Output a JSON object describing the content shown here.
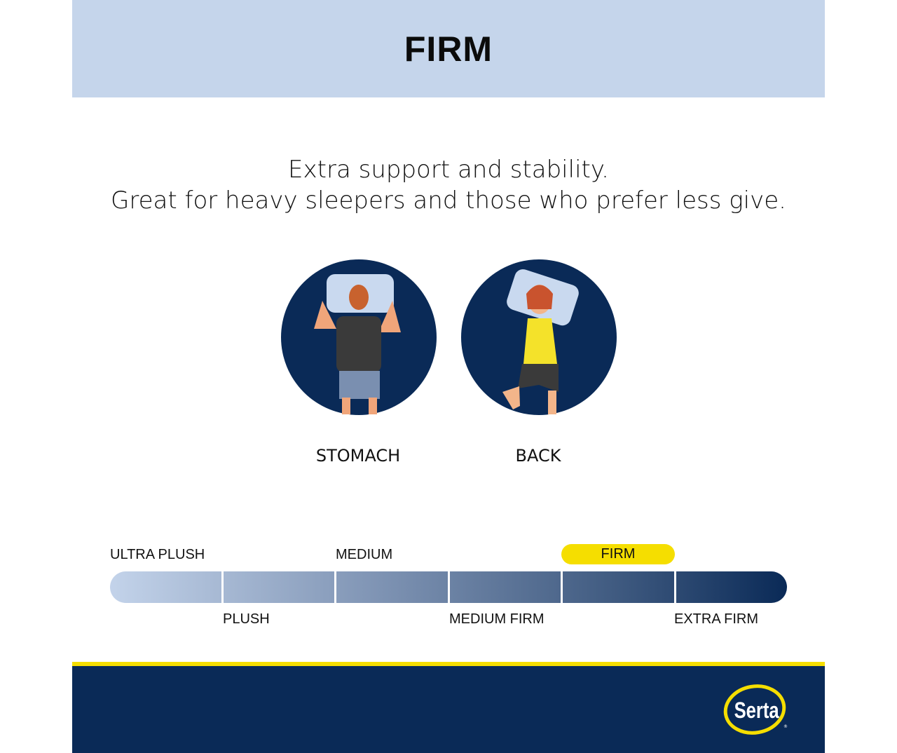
{
  "header": {
    "title": "FIRM"
  },
  "tagline": {
    "line1": "Extra support and stability.",
    "line2": "Great for heavy sleepers and those who prefer less give."
  },
  "positions": [
    {
      "label": "STOMACH",
      "icon": "stomach-sleeper-illustration"
    },
    {
      "label": "BACK",
      "icon": "back-sleeper-illustration"
    }
  ],
  "scale": {
    "levels": [
      "ULTRA PLUSH",
      "PLUSH",
      "MEDIUM",
      "MEDIUM FIRM",
      "FIRM",
      "EXTRA FIRM"
    ],
    "selected": "FIRM",
    "highlight_color": "#f5de00"
  },
  "colors": {
    "navy": "#0a2a57",
    "light_blue": "#c5d5eb",
    "yellow": "#f5de00"
  },
  "footer": {
    "logo": "Serta"
  }
}
